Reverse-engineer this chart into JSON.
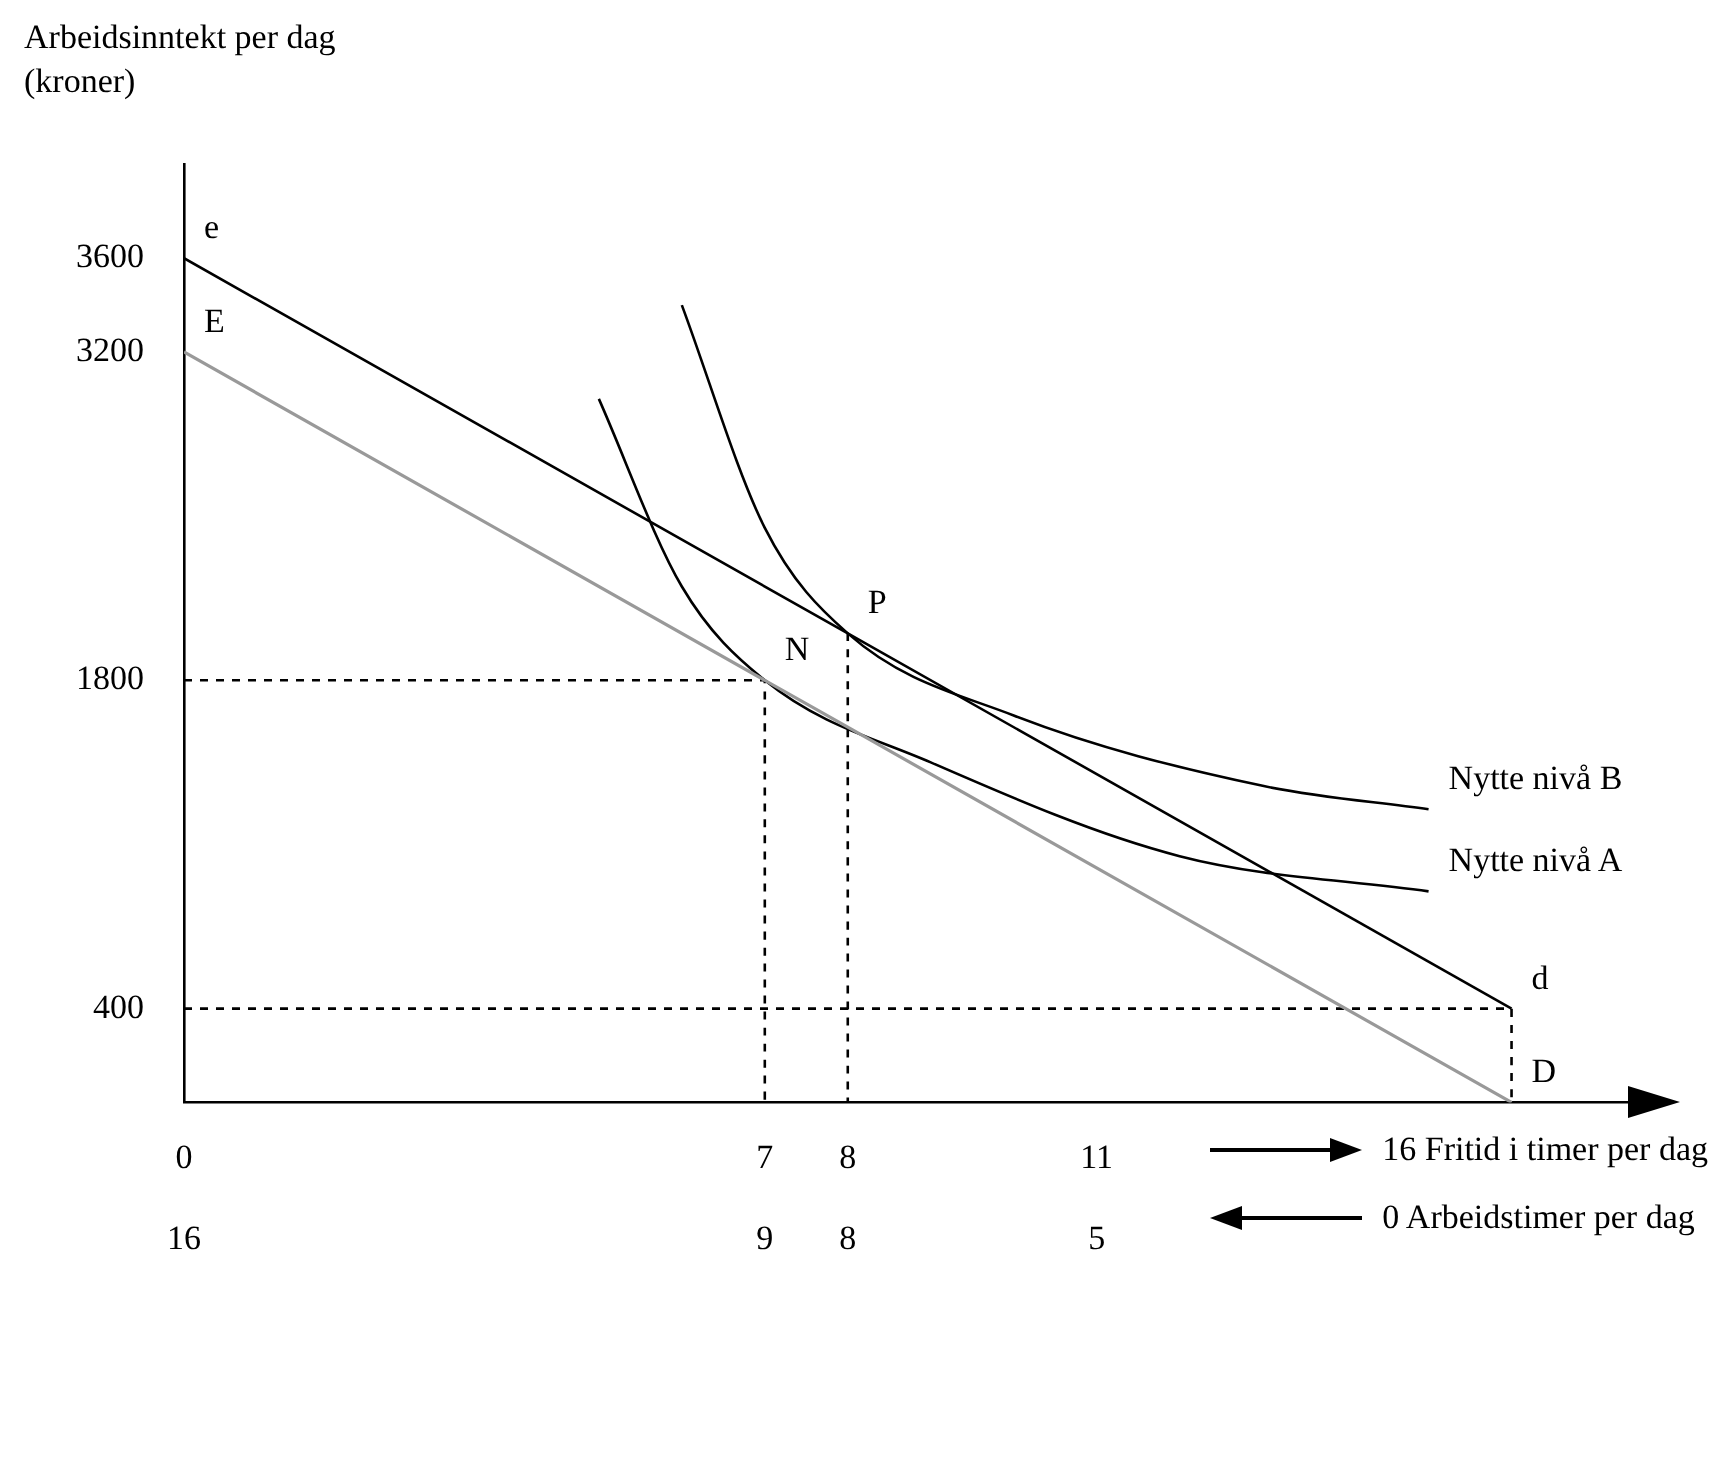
{
  "chart_data": {
    "type": "line",
    "ylabel": "Arbeidsinntekt per dag (kroner)",
    "xlim": [
      0,
      17.5
    ],
    "ylim": [
      0,
      4000
    ],
    "xticks": [
      0,
      7,
      8,
      11
    ],
    "x2lim": [
      16,
      -1.5
    ],
    "x2ticks": [
      16,
      9,
      8,
      5
    ],
    "xlabel": "16 Fritid i timer per dag",
    "x2label": "0 Arbeidstimer per dag",
    "yticks": [
      400,
      1800,
      3200,
      3600
    ],
    "grid": false,
    "legend": false,
    "marker": "none",
    "series": [
      {
        "color": "#000000",
        "x": [
          0,
          16
        ],
        "values": [
          3600,
          400
        ]
      },
      {
        "color": "#999999",
        "x": [
          0,
          16
        ],
        "values": [
          3200,
          0
        ]
      },
      {
        "color": "#000000",
        "x": [
          5,
          6,
          7,
          9,
          12,
          15
        ],
        "values": [
          3000,
          2200,
          1800,
          1450,
          1050,
          900
        ]
      },
      {
        "color": "#000000",
        "x": [
          6,
          7,
          8,
          10,
          13,
          15
        ],
        "values": [
          3400,
          2450,
          2000,
          1650,
          1350,
          1250
        ]
      },
      {
        "color": "#000000",
        "line_style": "dashed",
        "x": [
          0,
          7,
          7
        ],
        "values": [
          1800,
          1800,
          0
        ]
      },
      {
        "color": "#000000",
        "line_style": "dashed",
        "x": [
          8,
          8
        ],
        "values": [
          2000,
          0
        ]
      },
      {
        "color": "#000000",
        "line_style": "dashed",
        "x": [
          0,
          16,
          16
        ],
        "values": [
          400,
          400,
          0
        ]
      }
    ],
    "annotations": [
      {
        "text": "e",
        "x": 0,
        "y": 3600
      },
      {
        "text": "E",
        "x": 0,
        "y": 3200
      },
      {
        "text": "P",
        "x": 8,
        "y": 2000
      },
      {
        "text": "N",
        "x": 7,
        "y": 1800
      },
      {
        "text": "d",
        "x": 16,
        "y": 400
      },
      {
        "text": "D",
        "x": 16,
        "y": 0
      },
      {
        "text": "Nytte nivå B",
        "x": 15,
        "y": 1250
      },
      {
        "text": "Nytte nivå A",
        "x": 15,
        "y": 900
      }
    ]
  }
}
